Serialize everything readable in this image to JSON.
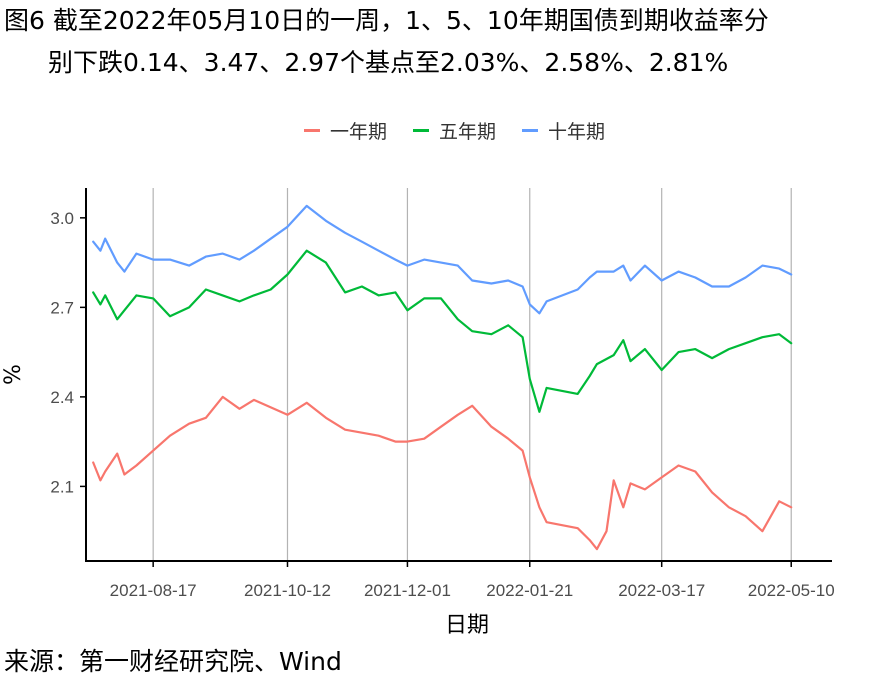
{
  "header": {
    "title_line1": "图6  截至2022年05月10日的一周，1、5、10年期国债到期收益率分",
    "title_line2": "别下跌0.14、3.47、2.97个基点至2.03%、2.58%、2.81%"
  },
  "footer": {
    "source": "来源：第一财经研究院、Wind"
  },
  "chart_data": {
    "type": "line",
    "xlabel": "日期",
    "ylabel": "%",
    "x_ticks": [
      "2021-08-17",
      "2021-10-12",
      "2021-12-01",
      "2022-01-21",
      "2022-03-17",
      "2022-05-10"
    ],
    "y_ticks": [
      2.1,
      2.4,
      2.7,
      3.0
    ],
    "x_range": [
      "2021-07-20",
      "2022-05-27"
    ],
    "ylim": [
      1.85,
      3.1
    ],
    "grid": "vertical at x ticks",
    "legend_position": "top",
    "colors": {
      "一年期": "#F8766D",
      "五年期": "#00BA38",
      "十年期": "#619CFF",
      "grid": "#b3b3b3",
      "axis": "#000000"
    },
    "series": [
      {
        "name": "一年期",
        "x": [
          "2021-07-23",
          "2021-07-26",
          "2021-07-28",
          "2021-08-02",
          "2021-08-05",
          "2021-08-10",
          "2021-08-17",
          "2021-08-24",
          "2021-09-01",
          "2021-09-08",
          "2021-09-15",
          "2021-09-22",
          "2021-09-28",
          "2021-10-12",
          "2021-10-20",
          "2021-10-28",
          "2021-11-05",
          "2021-11-12",
          "2021-11-19",
          "2021-11-26",
          "2021-12-01",
          "2021-12-08",
          "2021-12-15",
          "2021-12-22",
          "2021-12-28",
          "2022-01-05",
          "2022-01-12",
          "2022-01-18",
          "2022-01-21",
          "2022-01-25",
          "2022-01-28",
          "2022-02-10",
          "2022-02-15",
          "2022-02-18",
          "2022-02-22",
          "2022-02-25",
          "2022-03-01",
          "2022-03-04",
          "2022-03-10",
          "2022-03-17",
          "2022-03-24",
          "2022-03-31",
          "2022-04-07",
          "2022-04-14",
          "2022-04-21",
          "2022-04-28",
          "2022-05-05",
          "2022-05-10"
        ],
        "values": [
          2.18,
          2.12,
          2.15,
          2.21,
          2.14,
          2.17,
          2.22,
          2.27,
          2.31,
          2.33,
          2.4,
          2.36,
          2.39,
          2.34,
          2.38,
          2.33,
          2.29,
          2.28,
          2.27,
          2.25,
          2.25,
          2.26,
          2.3,
          2.34,
          2.37,
          2.3,
          2.26,
          2.22,
          2.13,
          2.03,
          1.98,
          1.96,
          1.92,
          1.89,
          1.95,
          2.12,
          2.03,
          2.11,
          2.09,
          2.13,
          2.17,
          2.15,
          2.08,
          2.03,
          2.0,
          1.95,
          2.05,
          2.03
        ]
      },
      {
        "name": "五年期",
        "x": [
          "2021-07-23",
          "2021-07-26",
          "2021-07-28",
          "2021-08-02",
          "2021-08-05",
          "2021-08-10",
          "2021-08-17",
          "2021-08-24",
          "2021-09-01",
          "2021-09-08",
          "2021-09-15",
          "2021-09-22",
          "2021-09-28",
          "2021-10-05",
          "2021-10-12",
          "2021-10-20",
          "2021-10-28",
          "2021-11-05",
          "2021-11-12",
          "2021-11-19",
          "2021-11-26",
          "2021-12-01",
          "2021-12-08",
          "2021-12-15",
          "2021-12-22",
          "2021-12-28",
          "2022-01-05",
          "2022-01-12",
          "2022-01-18",
          "2022-01-21",
          "2022-01-25",
          "2022-01-28",
          "2022-02-10",
          "2022-02-15",
          "2022-02-18",
          "2022-02-25",
          "2022-03-01",
          "2022-03-04",
          "2022-03-10",
          "2022-03-17",
          "2022-03-24",
          "2022-03-31",
          "2022-04-07",
          "2022-04-14",
          "2022-04-21",
          "2022-04-28",
          "2022-05-05",
          "2022-05-10"
        ],
        "values": [
          2.75,
          2.71,
          2.74,
          2.66,
          2.69,
          2.74,
          2.73,
          2.67,
          2.7,
          2.76,
          2.74,
          2.72,
          2.74,
          2.76,
          2.81,
          2.89,
          2.85,
          2.75,
          2.77,
          2.74,
          2.75,
          2.69,
          2.73,
          2.73,
          2.66,
          2.62,
          2.61,
          2.64,
          2.6,
          2.46,
          2.35,
          2.43,
          2.41,
          2.47,
          2.51,
          2.54,
          2.59,
          2.52,
          2.56,
          2.49,
          2.55,
          2.56,
          2.53,
          2.56,
          2.58,
          2.6,
          2.61,
          2.58
        ]
      },
      {
        "name": "十年期",
        "x": [
          "2021-07-23",
          "2021-07-26",
          "2021-07-28",
          "2021-08-02",
          "2021-08-05",
          "2021-08-10",
          "2021-08-17",
          "2021-08-24",
          "2021-09-01",
          "2021-09-08",
          "2021-09-15",
          "2021-09-22",
          "2021-09-28",
          "2021-10-05",
          "2021-10-12",
          "2021-10-20",
          "2021-10-28",
          "2021-11-05",
          "2021-11-12",
          "2021-11-19",
          "2021-11-26",
          "2021-12-01",
          "2021-12-08",
          "2021-12-15",
          "2021-12-22",
          "2021-12-28",
          "2022-01-05",
          "2022-01-12",
          "2022-01-18",
          "2022-01-21",
          "2022-01-25",
          "2022-01-28",
          "2022-02-10",
          "2022-02-15",
          "2022-02-18",
          "2022-02-25",
          "2022-03-01",
          "2022-03-04",
          "2022-03-10",
          "2022-03-17",
          "2022-03-24",
          "2022-03-31",
          "2022-04-07",
          "2022-04-14",
          "2022-04-21",
          "2022-04-28",
          "2022-05-05",
          "2022-05-10"
        ],
        "values": [
          2.92,
          2.89,
          2.93,
          2.85,
          2.82,
          2.88,
          2.86,
          2.86,
          2.84,
          2.87,
          2.88,
          2.86,
          2.89,
          2.93,
          2.97,
          3.04,
          2.99,
          2.95,
          2.92,
          2.89,
          2.86,
          2.84,
          2.86,
          2.85,
          2.84,
          2.79,
          2.78,
          2.79,
          2.77,
          2.71,
          2.68,
          2.72,
          2.76,
          2.8,
          2.82,
          2.82,
          2.84,
          2.79,
          2.84,
          2.79,
          2.82,
          2.8,
          2.77,
          2.77,
          2.8,
          2.84,
          2.83,
          2.81
        ]
      }
    ]
  }
}
